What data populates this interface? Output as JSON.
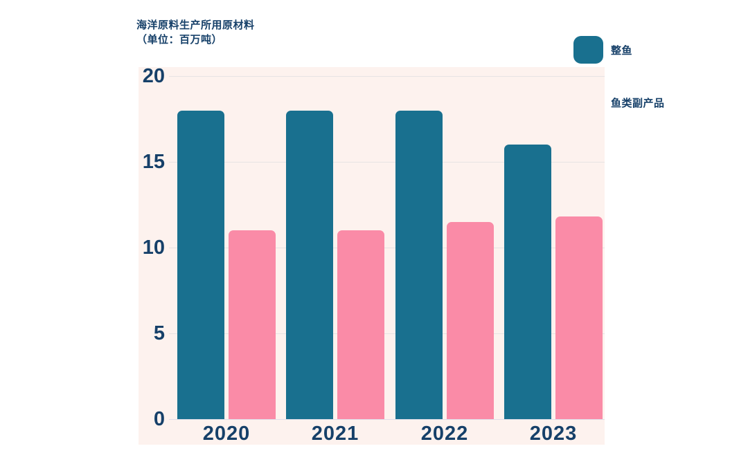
{
  "title": {
    "line1": "海洋原料生产所用原材料",
    "line2": "（单位：百万吨）"
  },
  "legend": [
    {
      "label": "整鱼",
      "color": "#19708f"
    },
    {
      "label": "鱼类副产品",
      "color": "#fa8ba7"
    }
  ],
  "chart_data": {
    "type": "bar",
    "title": "海洋原料生产所用原材料（单位：百万吨）",
    "categories": [
      "2020",
      "2021",
      "2022",
      "2023"
    ],
    "series": [
      {
        "name": "整鱼",
        "color": "#19708f",
        "values": [
          18,
          18,
          18,
          16
        ]
      },
      {
        "name": "鱼类副产品",
        "color": "#fa8ba7",
        "values": [
          11,
          11,
          11.5,
          11.8
        ]
      }
    ],
    "xlabel": "",
    "ylabel": "",
    "ylim": [
      0,
      20
    ],
    "yticks": [
      0,
      5,
      10,
      15,
      20
    ],
    "grid": true,
    "legend_position": "top-right",
    "colors": {
      "plot_background": "#fdf2ee",
      "gridline": "#e7e3e3",
      "baseline": "#dfdde8",
      "text": "#164069"
    }
  }
}
